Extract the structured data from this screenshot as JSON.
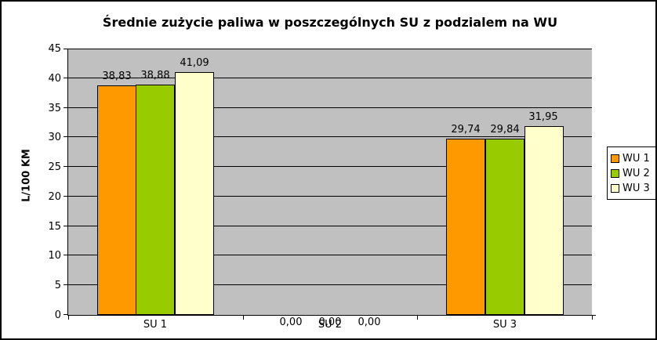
{
  "chart_data": {
    "type": "bar",
    "title": "Średnie zużycie paliwa w poszczególnych SU z podzialem na WU",
    "ylabel": "L/100 KM",
    "xlabel": "",
    "ylim": [
      0,
      45
    ],
    "yticks": [
      0,
      5,
      10,
      15,
      20,
      25,
      30,
      35,
      40,
      45
    ],
    "decimal_separator": ",",
    "grid": "horizontal",
    "legend_position": "right",
    "categories": [
      "SU 1",
      "SU 2",
      "SU 3"
    ],
    "series": [
      {
        "name": "WU 1",
        "color": "#FF9900",
        "values": [
          38.83,
          0.0,
          29.74
        ]
      },
      {
        "name": "WU 2",
        "color": "#99CC00",
        "values": [
          38.88,
          0.0,
          29.84
        ]
      },
      {
        "name": "WU 3",
        "color": "#FFFFCC",
        "values": [
          41.09,
          0.0,
          31.95
        ]
      }
    ]
  },
  "colors": {
    "plot_bg": "#C0C0C0",
    "gridline": "#000000",
    "bar_border": "#000000",
    "frame_border": "#000000",
    "legend_bg": "#FFFFFF"
  }
}
